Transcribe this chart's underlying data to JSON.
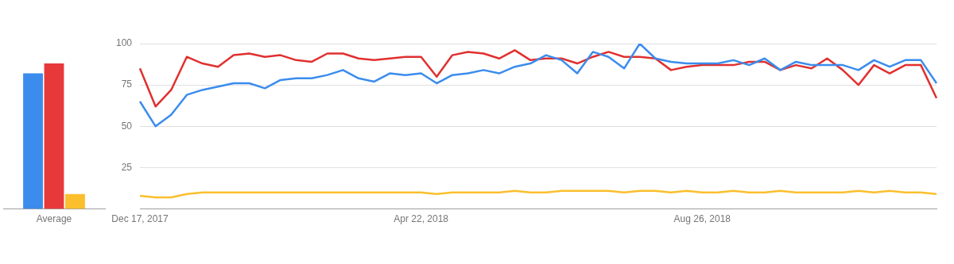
{
  "chart_data": [
    {
      "type": "bar",
      "categories": [
        "Average"
      ],
      "ylim": [
        0,
        100
      ],
      "tick_labels": "x",
      "grid": false,
      "series": [
        {
          "color": "#3b8ced",
          "values": [
            82
          ]
        },
        {
          "color": "#e8393a",
          "values": [
            88
          ]
        },
        {
          "color": "#fbbf2d",
          "values": [
            9
          ]
        }
      ]
    },
    {
      "type": "line",
      "categories": [
        "Dec 17, 2017",
        null,
        null,
        null,
        null,
        null,
        null,
        null,
        null,
        null,
        null,
        null,
        null,
        null,
        null,
        null,
        null,
        null,
        "Apr 22, 2018",
        null,
        null,
        null,
        null,
        null,
        null,
        null,
        null,
        null,
        null,
        null,
        null,
        null,
        null,
        null,
        null,
        null,
        "Aug 26, 2018",
        null,
        null,
        null,
        null,
        null,
        null,
        null,
        null,
        null,
        null,
        null,
        null,
        null,
        null,
        null
      ],
      "ylim": [
        0,
        100
      ],
      "yticks": [
        25,
        50,
        75,
        100
      ],
      "grid": "y",
      "marker": "none",
      "series": [
        {
          "color": "#3b8ced",
          "values": [
            65,
            50,
            57,
            69,
            72,
            74,
            76,
            76,
            73,
            78,
            79,
            79,
            81,
            84,
            79,
            77,
            82,
            81,
            82,
            76,
            81,
            82,
            84,
            82,
            86,
            88,
            93,
            90,
            82,
            95,
            92,
            85,
            100,
            91,
            89,
            88,
            88,
            88,
            90,
            87,
            91,
            84,
            89,
            87,
            87,
            87,
            84,
            90,
            86,
            90,
            90,
            76
          ]
        },
        {
          "color": "#e0302f",
          "values": [
            85,
            62,
            72,
            92,
            88,
            86,
            93,
            94,
            92,
            93,
            90,
            89,
            94,
            94,
            91,
            90,
            91,
            92,
            92,
            80,
            93,
            95,
            94,
            91,
            96,
            90,
            91,
            91,
            88,
            92,
            95,
            92,
            92,
            91,
            84,
            86,
            87,
            87,
            87,
            89,
            89,
            84,
            87,
            85,
            91,
            84,
            75,
            87,
            82,
            87,
            87,
            67
          ]
        },
        {
          "color": "#fbbf2d",
          "values": [
            8,
            7,
            7,
            9,
            10,
            10,
            10,
            10,
            10,
            10,
            10,
            10,
            10,
            10,
            10,
            10,
            10,
            10,
            10,
            9,
            10,
            10,
            10,
            10,
            11,
            10,
            10,
            11,
            11,
            11,
            11,
            10,
            11,
            11,
            10,
            11,
            10,
            10,
            11,
            10,
            10,
            11,
            10,
            10,
            10,
            10,
            11,
            10,
            11,
            10,
            10,
            9
          ]
        }
      ]
    }
  ]
}
